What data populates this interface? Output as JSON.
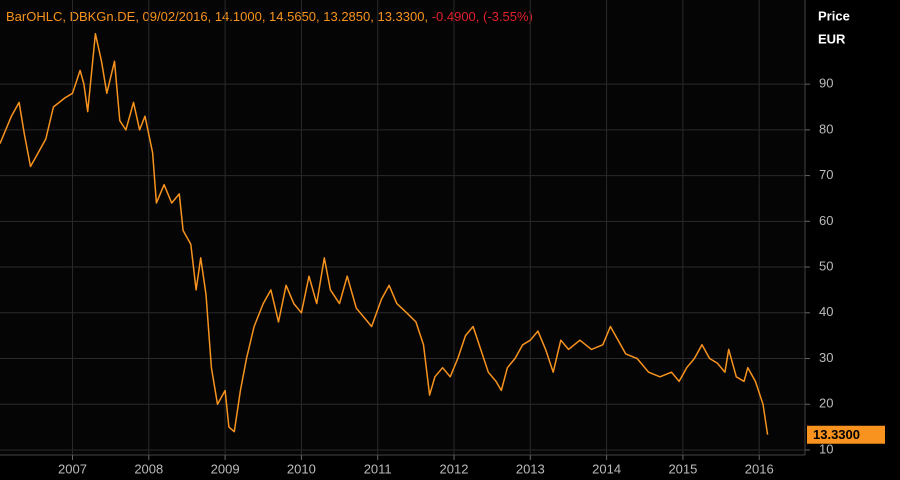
{
  "chart_data": {
    "type": "line",
    "header_info": "BarOHLC, DBKGn.DE, 09/02/2016, 14.1000, 14.5650, 13.2850, 13.3300, ",
    "header_change": "-0.4900, (-3.55%)",
    "y_label_1": "Price",
    "y_label_2": "EUR",
    "last_price_label": "13.3300",
    "color": "#f7931e",
    "grid": true,
    "xlim": [
      2006.05,
      2016.6
    ],
    "xticks": [
      2007,
      2008,
      2009,
      2010,
      2011,
      2012,
      2013,
      2014,
      2015,
      2016
    ],
    "ylim": [
      8.9,
      108.4
    ],
    "yticks": [
      10,
      20,
      30,
      40,
      50,
      60,
      70,
      80,
      90
    ],
    "x": [
      2006.05,
      2006.2,
      2006.3,
      2006.37,
      2006.45,
      2006.55,
      2006.65,
      2006.75,
      2006.9,
      2007.0,
      2007.1,
      2007.15,
      2007.2,
      2007.3,
      2007.38,
      2007.45,
      2007.55,
      2007.62,
      2007.7,
      2007.8,
      2007.88,
      2007.95,
      2008.05,
      2008.1,
      2008.2,
      2008.3,
      2008.4,
      2008.45,
      2008.55,
      2008.62,
      2008.68,
      2008.75,
      2008.82,
      2008.9,
      2009.0,
      2009.05,
      2009.12,
      2009.2,
      2009.28,
      2009.38,
      2009.5,
      2009.6,
      2009.7,
      2009.8,
      2009.9,
      2010.0,
      2010.1,
      2010.2,
      2010.3,
      2010.38,
      2010.5,
      2010.6,
      2010.72,
      2010.82,
      2010.92,
      2011.05,
      2011.15,
      2011.25,
      2011.38,
      2011.5,
      2011.6,
      2011.68,
      2011.75,
      2011.85,
      2011.95,
      2012.05,
      2012.15,
      2012.25,
      2012.35,
      2012.45,
      2012.55,
      2012.62,
      2012.7,
      2012.8,
      2012.9,
      2013.0,
      2013.1,
      2013.2,
      2013.3,
      2013.4,
      2013.5,
      2013.65,
      2013.8,
      2013.95,
      2014.05,
      2014.15,
      2014.25,
      2014.4,
      2014.55,
      2014.7,
      2014.85,
      2014.95,
      2015.05,
      2015.15,
      2015.25,
      2015.35,
      2015.45,
      2015.55,
      2015.6,
      2015.7,
      2015.8,
      2015.85,
      2015.95,
      2016.05,
      2016.11
    ],
    "values": [
      77,
      83,
      86,
      79,
      72,
      75,
      78,
      85,
      87,
      88,
      93,
      90,
      84,
      101,
      95,
      88,
      95,
      82,
      80,
      86,
      80,
      83,
      75,
      64,
      68,
      64,
      66,
      58,
      55,
      45,
      52,
      44,
      28,
      20,
      23,
      15,
      14,
      23,
      30,
      37,
      42,
      45,
      38,
      46,
      42,
      40,
      48,
      42,
      52,
      45,
      42,
      48,
      41,
      39,
      37,
      43,
      46,
      42,
      40,
      38,
      33,
      22,
      26,
      28,
      26,
      30,
      35,
      37,
      32,
      27,
      25,
      23,
      28,
      30,
      33,
      34,
      36,
      32,
      27,
      34,
      32,
      34,
      32,
      33,
      37,
      34,
      31,
      30,
      27,
      26,
      27,
      25,
      28,
      30,
      33,
      30,
      29,
      27,
      32,
      26,
      25,
      28,
      25,
      20,
      13.33
    ]
  }
}
